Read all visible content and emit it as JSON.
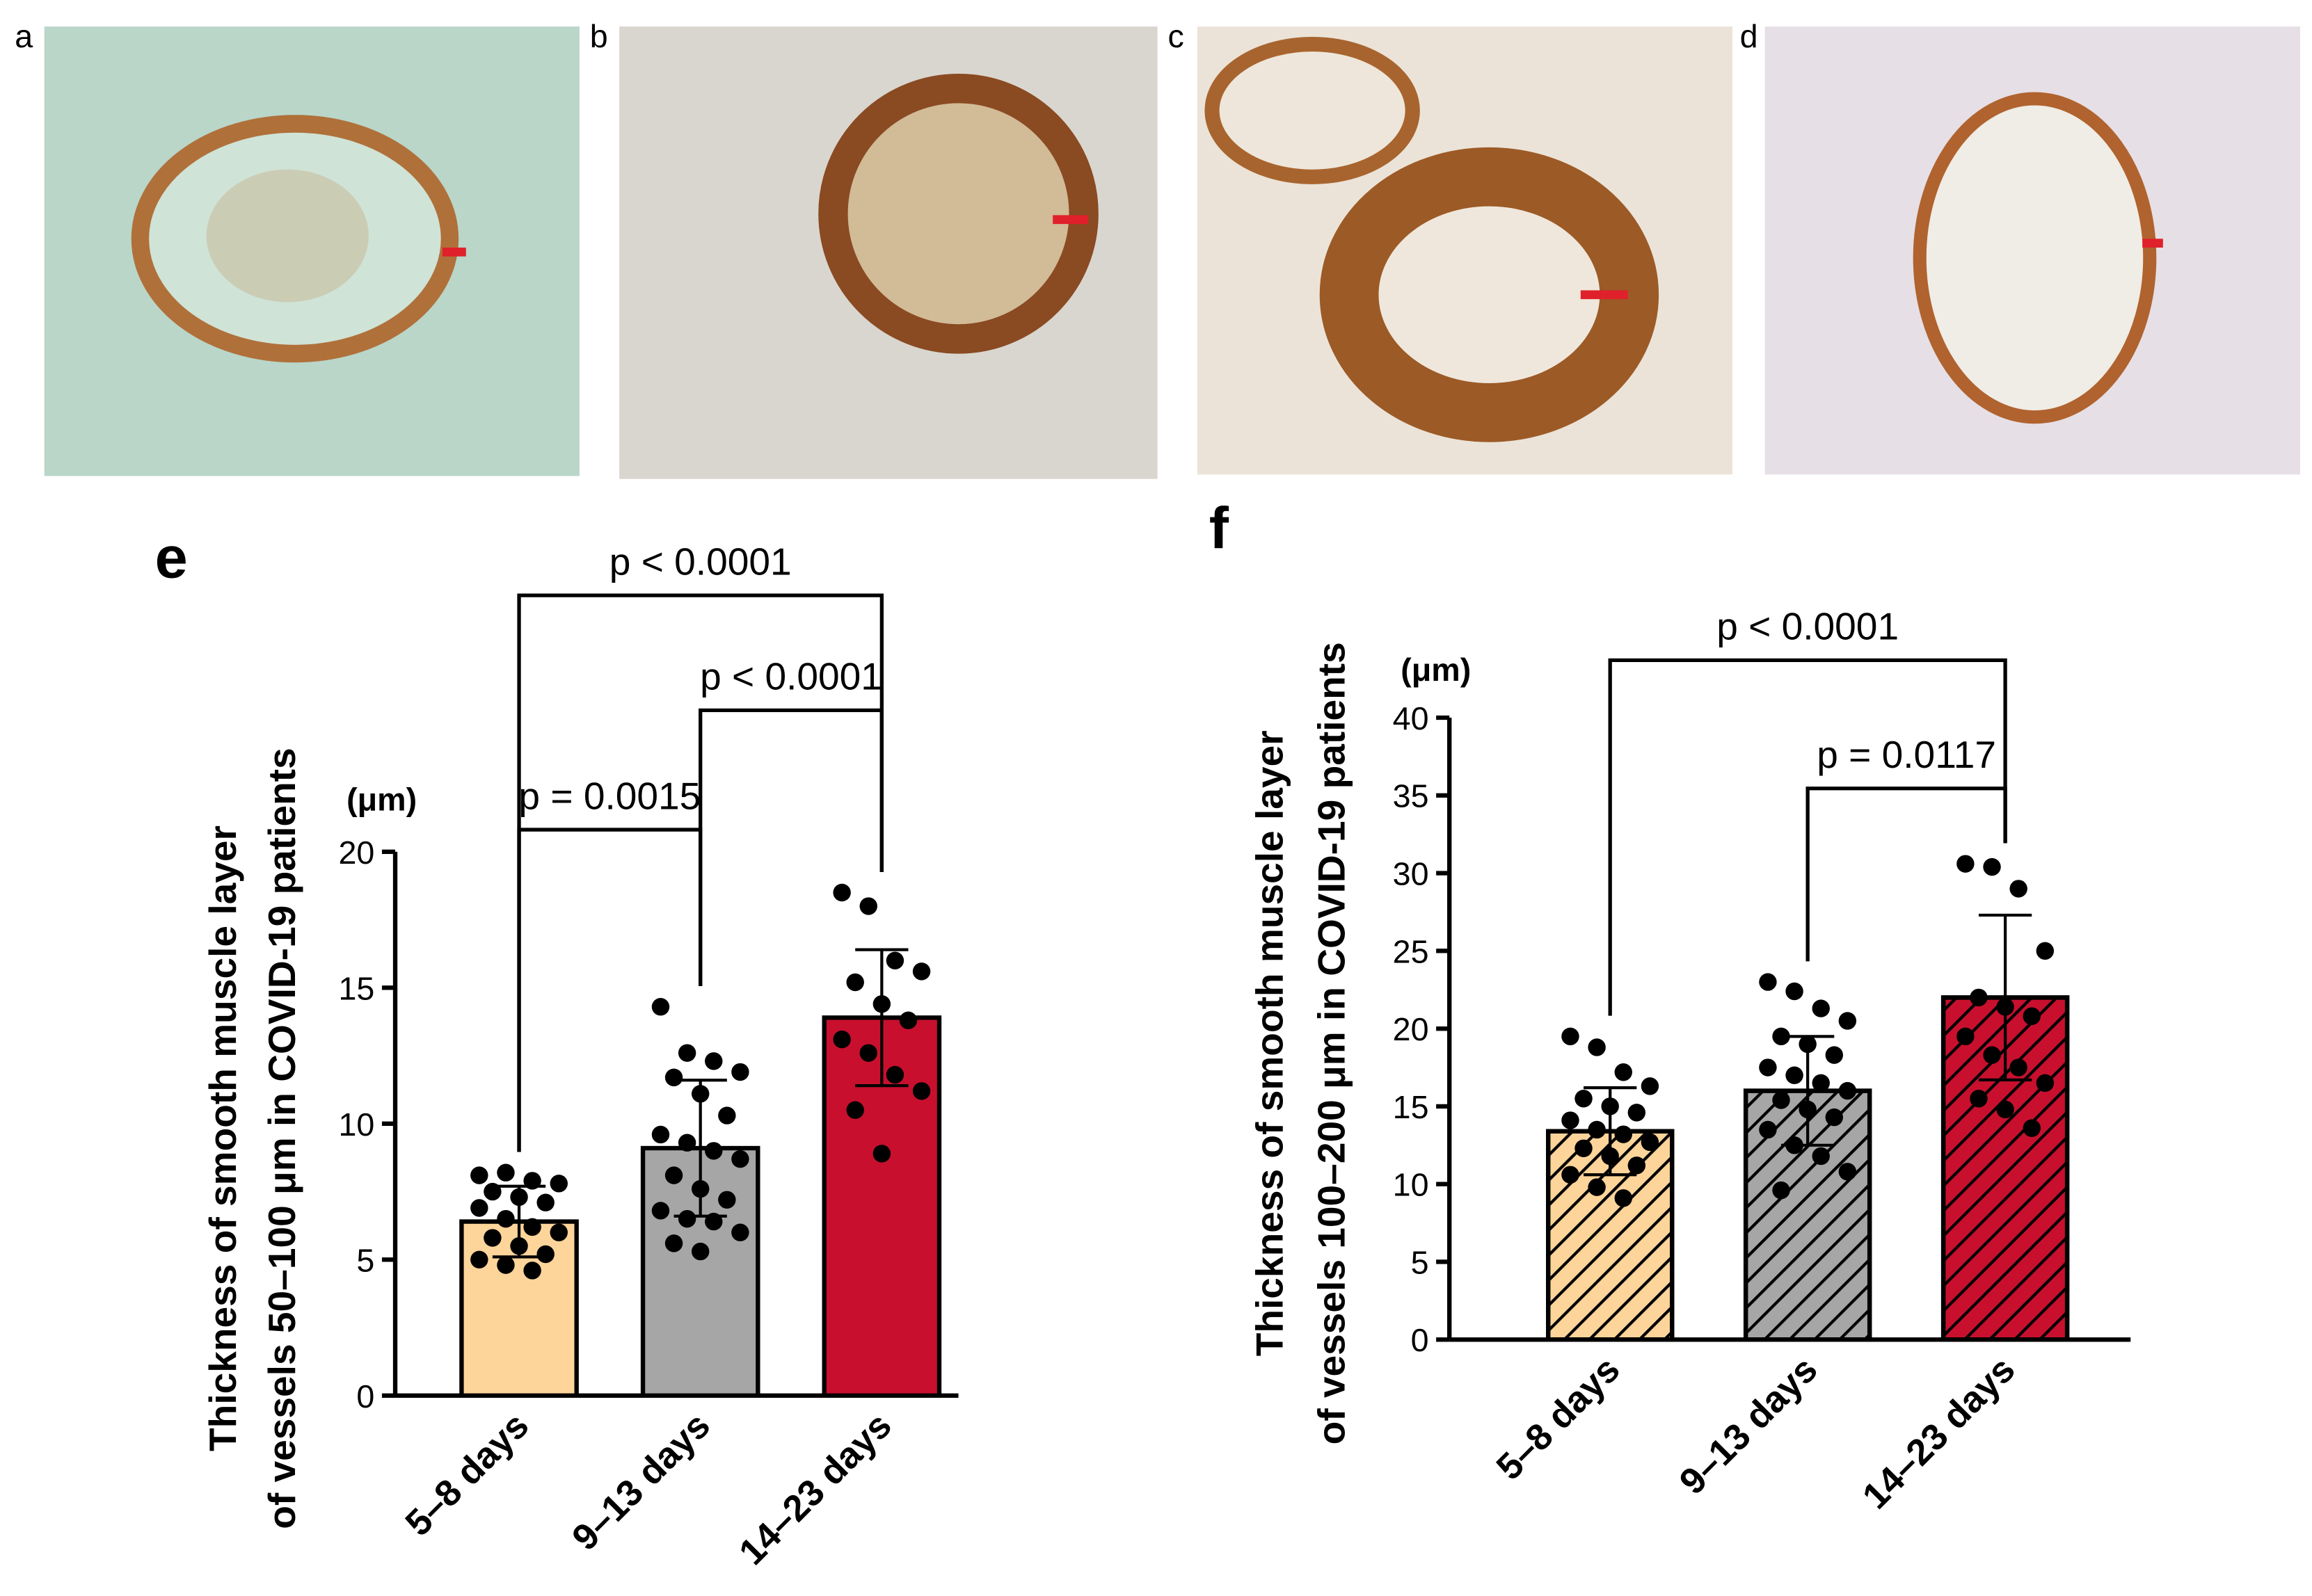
{
  "panels": [
    "a",
    "b",
    "c",
    "d"
  ],
  "chart_data": [
    {
      "type": "bar",
      "panel": "e",
      "unit": "(μm)",
      "ylabel": [
        "Thickness of smooth muscle layer",
        "of vessels 50–100 μm in COVID-19 patients"
      ],
      "categories": [
        "5–8 days",
        "9–13 days",
        "14–23 days"
      ],
      "values": [
        6.4,
        9.1,
        13.9
      ],
      "errors": [
        1.3,
        2.5,
        2.5
      ],
      "colors": [
        "#fdd49a",
        "#a6a6a6",
        "#c8102e"
      ],
      "hatch": false,
      "points": [
        [
          8.1,
          8.2,
          7.9,
          7.8,
          7.5,
          7.3,
          7.1,
          6.9,
          6.5,
          6.2,
          6.0,
          5.8,
          5.5,
          5.2,
          5.0,
          4.8,
          4.6
        ],
        [
          14.3,
          12.6,
          12.3,
          11.9,
          11.7,
          11.1,
          10.3,
          9.6,
          9.3,
          9.0,
          8.7,
          8.1,
          7.6,
          7.2,
          6.8,
          6.5,
          6.4,
          6.0,
          5.6,
          5.3
        ],
        [
          18.5,
          18.0,
          16.0,
          15.6,
          15.2,
          14.4,
          13.8,
          13.1,
          12.6,
          11.8,
          11.2,
          10.5,
          8.9
        ]
      ],
      "ylim": [
        0,
        20
      ],
      "yticks": [
        0,
        5,
        10,
        15,
        20
      ],
      "annotations": [
        {
          "text": "p = 0.0015",
          "from": 0,
          "to": 1
        },
        {
          "text": "p < 0.0001",
          "from": 1,
          "to": 2
        },
        {
          "text": "p < 0.0001",
          "from": 0,
          "to": 2
        }
      ]
    },
    {
      "type": "bar",
      "panel": "f",
      "unit": "(μm)",
      "ylabel": [
        "Thickness of smooth muscle layer",
        "of vessels 100–200 μm in COVID-19 patients"
      ],
      "categories": [
        "5–8 days",
        "9–13 days",
        "14–23 days"
      ],
      "values": [
        13.4,
        16.0,
        22.0
      ],
      "errors": [
        2.8,
        3.5,
        5.3
      ],
      "colors": [
        "#fdd49a",
        "#a6a6a6",
        "#c8102e"
      ],
      "hatch": true,
      "points": [
        [
          19.5,
          18.8,
          17.2,
          16.3,
          15.5,
          15.0,
          14.6,
          14.1,
          13.5,
          13.2,
          12.7,
          12.3,
          11.8,
          11.2,
          10.6,
          9.8,
          9.1
        ],
        [
          23.0,
          22.4,
          21.3,
          20.5,
          19.5,
          19.0,
          18.3,
          17.5,
          17.0,
          16.5,
          16.0,
          15.4,
          14.8,
          14.3,
          13.5,
          12.5,
          11.8,
          10.8,
          9.6
        ],
        [
          30.6,
          30.4,
          29.0,
          25.0,
          22.0,
          21.4,
          20.8,
          19.5,
          18.3,
          17.5,
          16.5,
          15.5,
          14.8,
          13.6
        ]
      ],
      "ylim": [
        0,
        40
      ],
      "yticks": [
        0,
        5,
        10,
        15,
        20,
        25,
        30,
        35,
        40
      ],
      "annotations": [
        {
          "text": "p = 0.0117",
          "from": 1,
          "to": 2
        },
        {
          "text": "p < 0.0001",
          "from": 0,
          "to": 2
        }
      ]
    }
  ]
}
